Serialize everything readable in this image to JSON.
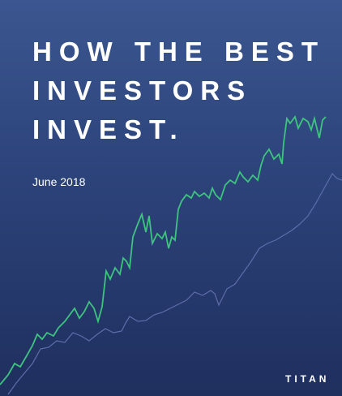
{
  "cover": {
    "title_lines": [
      "HOW THE BEST",
      "INVESTORS",
      "INVEST."
    ],
    "date": "June 2018",
    "brand": "TITAN"
  }
}
